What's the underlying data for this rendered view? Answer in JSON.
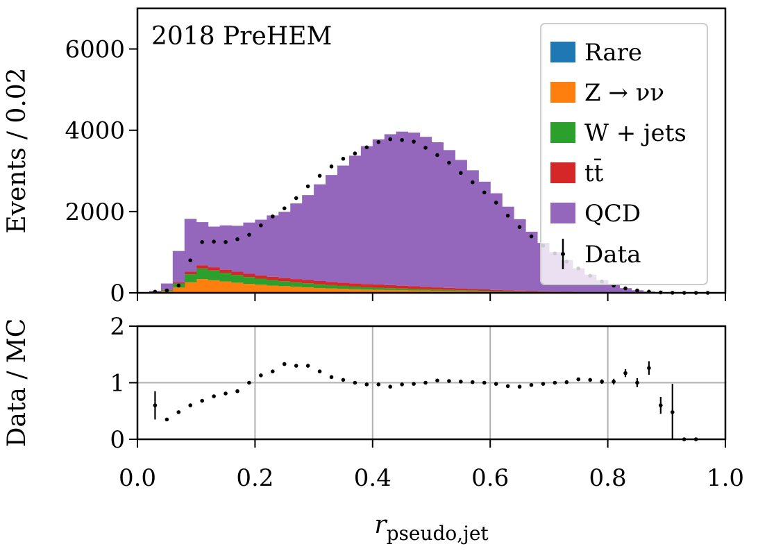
{
  "chart_data": [
    {
      "type": "bar",
      "stacked": true,
      "annotation": "2018 PreHEM",
      "ylabel": "Events / 0.02",
      "xlim": [
        0.0,
        1.0
      ],
      "ylim": [
        0,
        7000
      ],
      "yticks": [
        0,
        2000,
        4000,
        6000
      ],
      "ytick_labels": [
        "0",
        "2000",
        "4000",
        "6000"
      ],
      "xticks": [
        0.0,
        0.2,
        0.4,
        0.6,
        0.8,
        1.0
      ],
      "grid": false,
      "legend_position": "top-right",
      "bin_edges": [
        0.0,
        0.02,
        0.04,
        0.06,
        0.08,
        0.1,
        0.12,
        0.14,
        0.16,
        0.18,
        0.2,
        0.22,
        0.24,
        0.26,
        0.28,
        0.3,
        0.32,
        0.34,
        0.36,
        0.38,
        0.4,
        0.42,
        0.44,
        0.46,
        0.48,
        0.5,
        0.52,
        0.54,
        0.56,
        0.58,
        0.6,
        0.62,
        0.64,
        0.66,
        0.68,
        0.7,
        0.72,
        0.74,
        0.76,
        0.78,
        0.8,
        0.82,
        0.84,
        0.86,
        0.88,
        0.9,
        0.92,
        0.94,
        0.96,
        0.98,
        1.0
      ],
      "series": [
        {
          "name": "Rare",
          "color": "#1f77b4",
          "values": [
            0,
            0,
            0,
            0,
            10,
            10,
            10,
            10,
            10,
            10,
            10,
            10,
            10,
            10,
            10,
            10,
            10,
            10,
            10,
            10,
            10,
            10,
            10,
            10,
            10,
            10,
            10,
            10,
            10,
            10,
            5,
            5,
            5,
            5,
            5,
            5,
            5,
            5,
            5,
            5,
            5,
            0,
            0,
            0,
            0,
            0,
            0,
            0,
            0,
            0
          ]
        },
        {
          "name": "Z → νν",
          "color": "#ff7f0e",
          "values": [
            0,
            5,
            40,
            130,
            250,
            330,
            300,
            270,
            240,
            210,
            190,
            170,
            155,
            140,
            125,
            110,
            100,
            90,
            80,
            70,
            65,
            60,
            55,
            50,
            45,
            40,
            35,
            30,
            25,
            22,
            20,
            18,
            15,
            12,
            10,
            8,
            6,
            5,
            4,
            3,
            2,
            2,
            1,
            1,
            0,
            0,
            0,
            0,
            0,
            0
          ]
        },
        {
          "name": "W + jets",
          "color": "#2ca02c",
          "values": [
            0,
            5,
            30,
            100,
            200,
            260,
            240,
            210,
            190,
            170,
            150,
            135,
            120,
            110,
            100,
            90,
            80,
            72,
            65,
            58,
            52,
            47,
            42,
            38,
            34,
            30,
            27,
            24,
            21,
            18,
            15,
            13,
            11,
            9,
            7,
            6,
            5,
            4,
            3,
            2,
            2,
            1,
            1,
            0,
            0,
            0,
            0,
            0,
            0,
            0
          ]
        },
        {
          "name": "tt̄",
          "color": "#d62728",
          "values": [
            0,
            2,
            10,
            30,
            60,
            80,
            80,
            80,
            80,
            80,
            80,
            80,
            80,
            80,
            80,
            80,
            80,
            80,
            80,
            80,
            80,
            75,
            70,
            65,
            60,
            55,
            50,
            45,
            40,
            35,
            30,
            25,
            22,
            18,
            15,
            12,
            10,
            8,
            6,
            5,
            4,
            3,
            2,
            1,
            0,
            0,
            0,
            0,
            0,
            0
          ]
        },
        {
          "name": "QCD",
          "color": "#9467bd",
          "values": [
            0,
            38,
            150,
            770,
            1300,
            1060,
            1000,
            1090,
            1130,
            1260,
            1370,
            1510,
            1630,
            1860,
            2090,
            2380,
            2630,
            2880,
            3140,
            3390,
            3570,
            3710,
            3790,
            3780,
            3690,
            3570,
            3390,
            3160,
            2920,
            2650,
            2380,
            2060,
            1760,
            1460,
            1190,
            970,
            780,
            580,
            430,
            300,
            200,
            110,
            60,
            30,
            15,
            5,
            2,
            0,
            0,
            0
          ]
        }
      ],
      "data_series": {
        "name": "Data",
        "x": [
          0.03,
          0.05,
          0.07,
          0.09,
          0.11,
          0.13,
          0.15,
          0.17,
          0.19,
          0.21,
          0.23,
          0.25,
          0.27,
          0.29,
          0.31,
          0.33,
          0.35,
          0.37,
          0.39,
          0.41,
          0.43,
          0.45,
          0.47,
          0.49,
          0.51,
          0.53,
          0.55,
          0.57,
          0.59,
          0.61,
          0.63,
          0.65,
          0.67,
          0.69,
          0.71,
          0.73,
          0.75,
          0.77,
          0.79,
          0.81,
          0.83,
          0.85,
          0.87,
          0.89,
          0.91,
          0.93,
          0.95,
          0.97
        ],
        "y": [
          30,
          60,
          180,
          800,
          1250,
          1260,
          1250,
          1320,
          1430,
          1660,
          1880,
          2080,
          2330,
          2620,
          2880,
          3110,
          3300,
          3430,
          3580,
          3710,
          3780,
          3760,
          3720,
          3570,
          3390,
          3200,
          2950,
          2720,
          2470,
          2220,
          1900,
          1620,
          1390,
          1160,
          970,
          770,
          600,
          420,
          280,
          180,
          110,
          60,
          30,
          10,
          2,
          0,
          0,
          0
        ]
      }
    },
    {
      "type": "scatter",
      "ylabel": "Data / MC",
      "xlabel": "r",
      "xlabel_subscript": "pseudo,jet",
      "xlim": [
        0.0,
        1.0
      ],
      "ylim": [
        0,
        2
      ],
      "yticks": [
        0,
        1,
        2
      ],
      "ytick_labels": [
        "0",
        "1",
        "2"
      ],
      "xticks": [
        0.0,
        0.2,
        0.4,
        0.6,
        0.8,
        1.0
      ],
      "xtick_labels": [
        "0.0",
        "0.2",
        "0.4",
        "0.6",
        "0.8",
        "1.0"
      ],
      "grid": true,
      "points": {
        "x": [
          0.03,
          0.05,
          0.07,
          0.09,
          0.11,
          0.13,
          0.15,
          0.17,
          0.19,
          0.21,
          0.23,
          0.25,
          0.27,
          0.29,
          0.31,
          0.33,
          0.35,
          0.37,
          0.39,
          0.41,
          0.43,
          0.45,
          0.47,
          0.49,
          0.51,
          0.53,
          0.55,
          0.57,
          0.59,
          0.61,
          0.63,
          0.65,
          0.67,
          0.69,
          0.71,
          0.73,
          0.75,
          0.77,
          0.79,
          0.81,
          0.83,
          0.85,
          0.87,
          0.89,
          0.91,
          0.93,
          0.95
        ],
        "y": [
          0.6,
          0.35,
          0.48,
          0.6,
          0.68,
          0.76,
          0.81,
          0.85,
          1.0,
          1.13,
          1.2,
          1.33,
          1.3,
          1.3,
          1.2,
          1.1,
          1.05,
          1.0,
          0.97,
          0.97,
          0.93,
          0.97,
          0.98,
          1.0,
          1.04,
          1.03,
          1.02,
          1.01,
          1.0,
          0.98,
          0.94,
          0.93,
          0.96,
          0.98,
          1.0,
          1.01,
          1.06,
          1.05,
          1.02,
          1.02,
          1.17,
          1.0,
          1.26,
          0.6,
          0.48,
          0.0,
          0.0
        ],
        "err": [
          0.25,
          0.03,
          0.02,
          0.02,
          0.01,
          0.01,
          0.01,
          0.01,
          0.01,
          0.01,
          0.01,
          0.01,
          0.01,
          0.01,
          0.01,
          0.01,
          0.01,
          0.01,
          0.01,
          0.01,
          0.01,
          0.01,
          0.01,
          0.01,
          0.01,
          0.01,
          0.01,
          0.01,
          0.01,
          0.01,
          0.01,
          0.02,
          0.02,
          0.02,
          0.02,
          0.02,
          0.02,
          0.03,
          0.04,
          0.05,
          0.07,
          0.08,
          0.12,
          0.15,
          0.5,
          0.0,
          0.0
        ]
      }
    }
  ]
}
